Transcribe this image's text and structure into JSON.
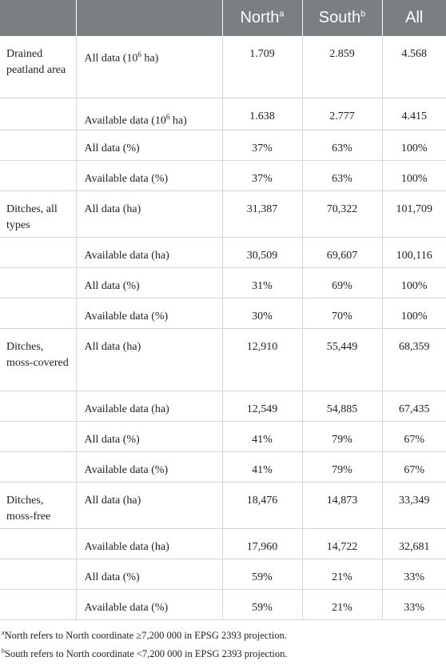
{
  "header": {
    "north": "North",
    "north_sup": "a",
    "south": "South",
    "south_sup": "b",
    "all": "All"
  },
  "rows": [
    {
      "group": "Drained peatland area",
      "label": "All data (10",
      "label_sup": "6",
      "label_tail": " ha)",
      "north": "1.709",
      "south": "2.859",
      "all": "4.568"
    },
    {
      "group": "",
      "label": "Available data (10",
      "label_sup": "6",
      "label_tail": " ha)",
      "north": "1.638",
      "south": "2.777",
      "all": "4.415"
    },
    {
      "group": "",
      "label": "All data (%)",
      "north": "37%",
      "south": "63%",
      "all": "100%"
    },
    {
      "group": "",
      "label": "Available data (%)",
      "north": "37%",
      "south": "63%",
      "all": "100%"
    },
    {
      "group": "Ditches, all types",
      "label": "All data (ha)",
      "north": "31,387",
      "south": "70,322",
      "all": "101,709"
    },
    {
      "group": "",
      "label": "Available data (ha)",
      "north": "30,509",
      "south": "69,607",
      "all": "100,116"
    },
    {
      "group": "",
      "label": "All data (%)",
      "north": "31%",
      "south": "69%",
      "all": "100%"
    },
    {
      "group": "",
      "label": "Available data (%)",
      "north": "30%",
      "south": "70%",
      "all": "100%"
    },
    {
      "group": "Ditches, moss-covered",
      "label": "All data (ha)",
      "north": "12,910",
      "south": "55,449",
      "all": "68,359"
    },
    {
      "group": "",
      "label": "Available data (ha)",
      "north": "12,549",
      "south": "54,885",
      "all": "67,435"
    },
    {
      "group": "",
      "label": "All data (%)",
      "north": "41%",
      "south": "79%",
      "all": "67%"
    },
    {
      "group": "",
      "label": "Available data (%)",
      "north": "41%",
      "south": "79%",
      "all": "67%"
    },
    {
      "group": "Ditches, moss-free",
      "label": "All data (ha)",
      "north": "18,476",
      "south": "14,873",
      "all": "33,349"
    },
    {
      "group": "",
      "label": "Available data (ha)",
      "north": "17,960",
      "south": "14,722",
      "all": "32,681"
    },
    {
      "group": "",
      "label": "All data (%)",
      "north": "59%",
      "south": "21%",
      "all": "33%"
    },
    {
      "group": "",
      "label": "Available data (%)",
      "north": "59%",
      "south": "21%",
      "all": "33%"
    }
  ],
  "footnotes": [
    {
      "mark": "a",
      "text": "North refers to North coordinate ≥7,200 000 in EPSG 2393 projection."
    },
    {
      "mark": "b",
      "text": "South refers to North coordinate <7,200 000 in EPSG 2393 projection."
    }
  ]
}
